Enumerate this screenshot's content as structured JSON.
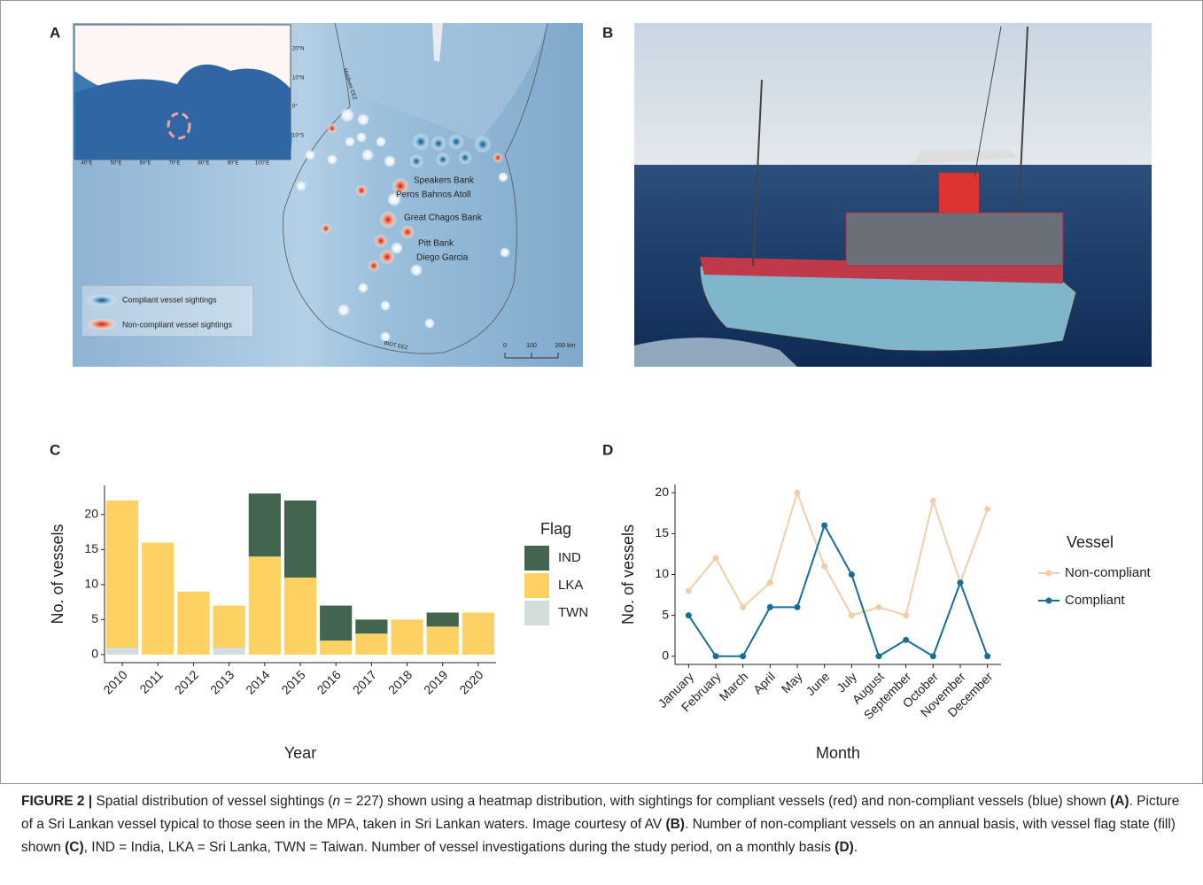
{
  "panel_labels": [
    "A",
    "B",
    "C",
    "D"
  ],
  "map": {
    "inset_lat_labels": [
      "20°N",
      "10°N",
      "0°",
      "10°S"
    ],
    "inset_lon_labels": [
      "40°E",
      "50°E",
      "60°E",
      "70°E",
      "80°E",
      "90°E",
      "100°E"
    ],
    "places": [
      "Speakers Bank",
      "Peros Bahnos Atoll",
      "Great Chagos Bank",
      "Pitt Bank",
      "Diego Garcia"
    ],
    "eez_labels": [
      "Maldives EEZ",
      "BIOT EEZ"
    ],
    "legend": [
      "Compliant vessel sightings",
      "Non-compliant vessel sightings"
    ],
    "scale": [
      "0",
      "100",
      "200 km"
    ]
  },
  "chart_data": [
    {
      "type": "bar",
      "stacked": true,
      "x_label": "Year",
      "y_label": "No. of vessels",
      "legend_title": "Flag",
      "categories": [
        "2010",
        "2011",
        "2012",
        "2013",
        "2014",
        "2015",
        "2016",
        "2017",
        "2018",
        "2019",
        "2020"
      ],
      "series": [
        {
          "name": "IND",
          "color": "#43644f",
          "values": [
            0,
            0,
            0,
            0,
            9,
            11,
            5,
            2,
            0,
            2,
            0
          ]
        },
        {
          "name": "LKA",
          "color": "#fdd262",
          "values": [
            21,
            16,
            9,
            6,
            14,
            11,
            2,
            3,
            5,
            4,
            6
          ]
        },
        {
          "name": "TWN",
          "color": "#d3dddc",
          "values": [
            1,
            0,
            0,
            1,
            0,
            0,
            0,
            0,
            0,
            0,
            0
          ]
        }
      ],
      "ylim": [
        -1.15,
        24.15
      ],
      "yticks": [
        0,
        5,
        10,
        15,
        20
      ]
    },
    {
      "type": "line",
      "x_label": "Month",
      "y_label": "No. of vessels",
      "legend_title": "Vessel",
      "categories": [
        "January",
        "February",
        "March",
        "April",
        "May",
        "June",
        "July",
        "August",
        "September",
        "October",
        "November",
        "December"
      ],
      "series": [
        {
          "name": "Non-compliant",
          "color": "#efcfa9",
          "values": [
            8,
            12,
            6,
            9,
            20,
            11,
            5,
            6,
            5,
            19,
            9,
            18
          ]
        },
        {
          "name": "Compliant",
          "color": "#1a6e96",
          "values": [
            5,
            0,
            0,
            6,
            6,
            16,
            10,
            0,
            2,
            0,
            9,
            0
          ]
        }
      ],
      "ylim": [
        -1,
        21
      ],
      "yticks": [
        0,
        5,
        10,
        15,
        20
      ]
    }
  ],
  "caption": [
    {
      "text": "FIGURE 2 |",
      "style": "bold"
    },
    {
      "text": " Spatial distribution of vessel sightings (",
      "style": "normal"
    },
    {
      "text": "n",
      "style": "italic"
    },
    {
      "text": " = 227) shown using a heatmap distribution, with sightings for compliant vessels (red) and non-compliant vessels (blue) shown ",
      "style": "normal"
    },
    {
      "text": "(A)",
      "style": "bold"
    },
    {
      "text": ". Picture of a Sri Lankan vessel typical to those seen in the MPA, taken in Sri Lankan waters. Image courtesy of AV ",
      "style": "normal"
    },
    {
      "text": "(B)",
      "style": "bold"
    },
    {
      "text": ". Number of non-compliant vessels on an annual basis, with vessel flag state (fill) shown ",
      "style": "normal"
    },
    {
      "text": "(C)",
      "style": "bold"
    },
    {
      "text": ", IND = India, LKA = Sri Lanka, TWN = Taiwan. Number of vessel investigations during the study period, on a monthly basis ",
      "style": "normal"
    },
    {
      "text": "(D)",
      "style": "bold"
    },
    {
      "text": ".",
      "style": "normal"
    }
  ]
}
